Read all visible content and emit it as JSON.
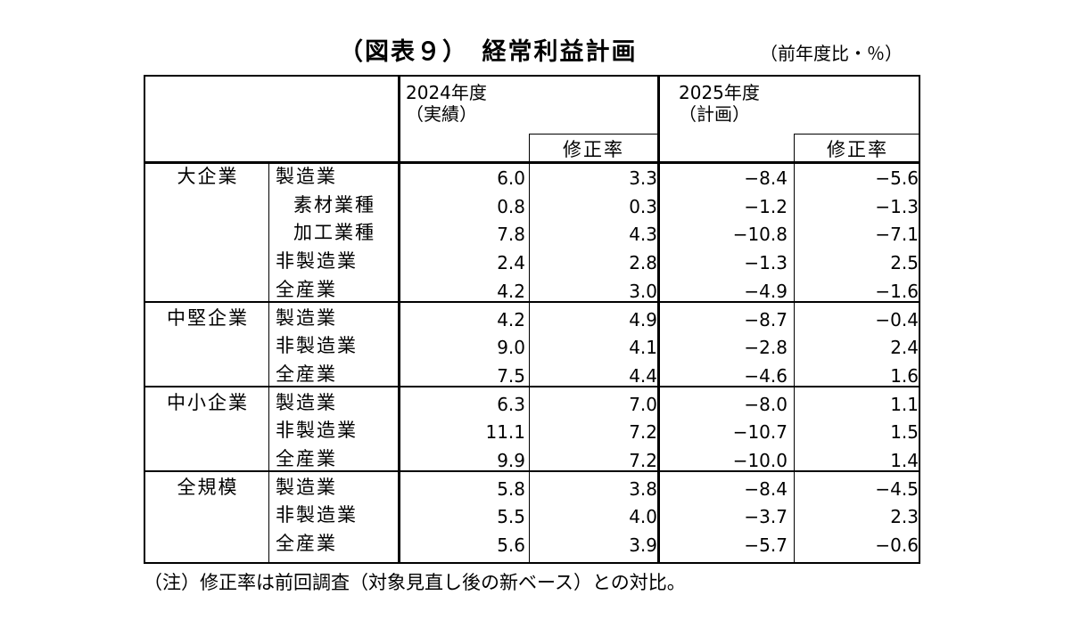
{
  "title": "（図表９）　経常利益計画",
  "unit": "（前年度比・％）",
  "header": {
    "fy2024_line1": "2024年度",
    "fy2024_line2": "（実績）",
    "fy2025_line1": "2025年度",
    "fy2025_line2": "（計画）",
    "revision_label_1": "修正率",
    "revision_label_2": "修正率"
  },
  "rows": [
    {
      "group": "大企業",
      "label": "製造業",
      "indent": false,
      "v2024": "6.0",
      "r2024": "3.3",
      "v2025": "−8.4",
      "r2025": "−5.6"
    },
    {
      "group": "",
      "label": "素材業種",
      "indent": true,
      "v2024": "0.8",
      "r2024": "0.3",
      "v2025": "−1.2",
      "r2025": "−1.3"
    },
    {
      "group": "",
      "label": "加工業種",
      "indent": true,
      "v2024": "7.8",
      "r2024": "4.3",
      "v2025": "−10.8",
      "r2025": "−7.1"
    },
    {
      "group": "",
      "label": "非製造業",
      "indent": false,
      "v2024": "2.4",
      "r2024": "2.8",
      "v2025": "−1.3",
      "r2025": "2.5"
    },
    {
      "group": "",
      "label": "全産業",
      "indent": false,
      "v2024": "4.2",
      "r2024": "3.0",
      "v2025": "−4.9",
      "r2025": "−1.6"
    },
    {
      "group": "中堅企業",
      "label": "製造業",
      "indent": false,
      "v2024": "4.2",
      "r2024": "4.9",
      "v2025": "−8.7",
      "r2025": "−0.4"
    },
    {
      "group": "",
      "label": "非製造業",
      "indent": false,
      "v2024": "9.0",
      "r2024": "4.1",
      "v2025": "−2.8",
      "r2025": "2.4"
    },
    {
      "group": "",
      "label": "全産業",
      "indent": false,
      "v2024": "7.5",
      "r2024": "4.4",
      "v2025": "−4.6",
      "r2025": "1.6"
    },
    {
      "group": "中小企業",
      "label": "製造業",
      "indent": false,
      "v2024": "6.3",
      "r2024": "7.0",
      "v2025": "−8.0",
      "r2025": "1.1"
    },
    {
      "group": "",
      "label": "非製造業",
      "indent": false,
      "v2024": "11.1",
      "r2024": "7.2",
      "v2025": "−10.7",
      "r2025": "1.5"
    },
    {
      "group": "",
      "label": "全産業",
      "indent": false,
      "v2024": "9.9",
      "r2024": "7.2",
      "v2025": "−10.0",
      "r2025": "1.4"
    },
    {
      "group": "全規模",
      "label": "製造業",
      "indent": false,
      "v2024": "5.8",
      "r2024": "3.8",
      "v2025": "−8.4",
      "r2025": "−4.5"
    },
    {
      "group": "",
      "label": "非製造業",
      "indent": false,
      "v2024": "5.5",
      "r2024": "4.0",
      "v2025": "−3.7",
      "r2025": "2.3"
    },
    {
      "group": "",
      "label": "全産業",
      "indent": false,
      "v2024": "5.6",
      "r2024": "3.9",
      "v2025": "−5.7",
      "r2025": "−0.6"
    }
  ],
  "note": "（注）修正率は前回調査（対象見直し後の新ベース）との対比。"
}
